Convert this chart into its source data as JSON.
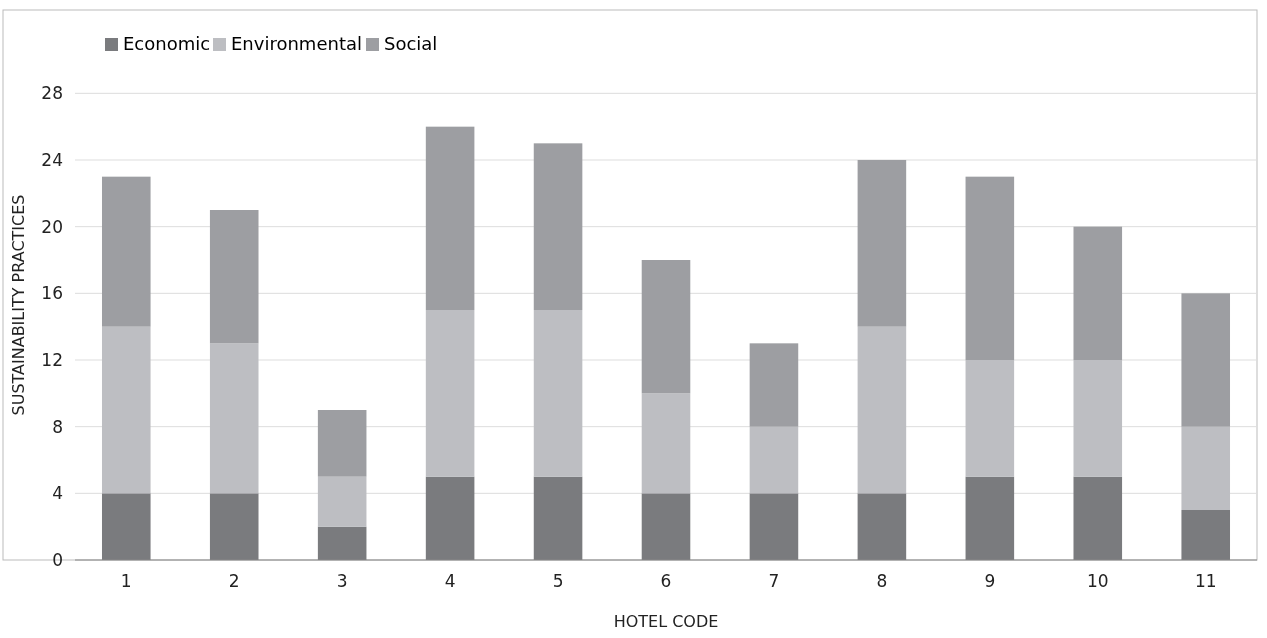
{
  "chart_data": {
    "type": "bar",
    "stacked": true,
    "xlabel": "HOTEL CODE",
    "ylabel": "SUSTAINABILITY PRACTICES",
    "categories": [
      "1",
      "2",
      "3",
      "4",
      "5",
      "6",
      "7",
      "8",
      "9",
      "10",
      "11"
    ],
    "series": [
      {
        "name": "Economic",
        "color": "#7a7b7e",
        "values": [
          4,
          4,
          2,
          5,
          5,
          4,
          4,
          4,
          5,
          5,
          3
        ]
      },
      {
        "name": "Environmental",
        "color": "#bdbec2",
        "values": [
          10,
          9,
          3,
          10,
          10,
          6,
          4,
          10,
          7,
          7,
          5
        ]
      },
      {
        "name": "Social",
        "color": "#9d9ea2",
        "values": [
          9,
          8,
          4,
          11,
          10,
          8,
          5,
          10,
          11,
          8,
          8
        ]
      }
    ],
    "ylim": [
      0,
      33
    ],
    "yticks": [
      0,
      4,
      8,
      12,
      16,
      20,
      24,
      28
    ],
    "grid": "y",
    "legend": "top left"
  }
}
